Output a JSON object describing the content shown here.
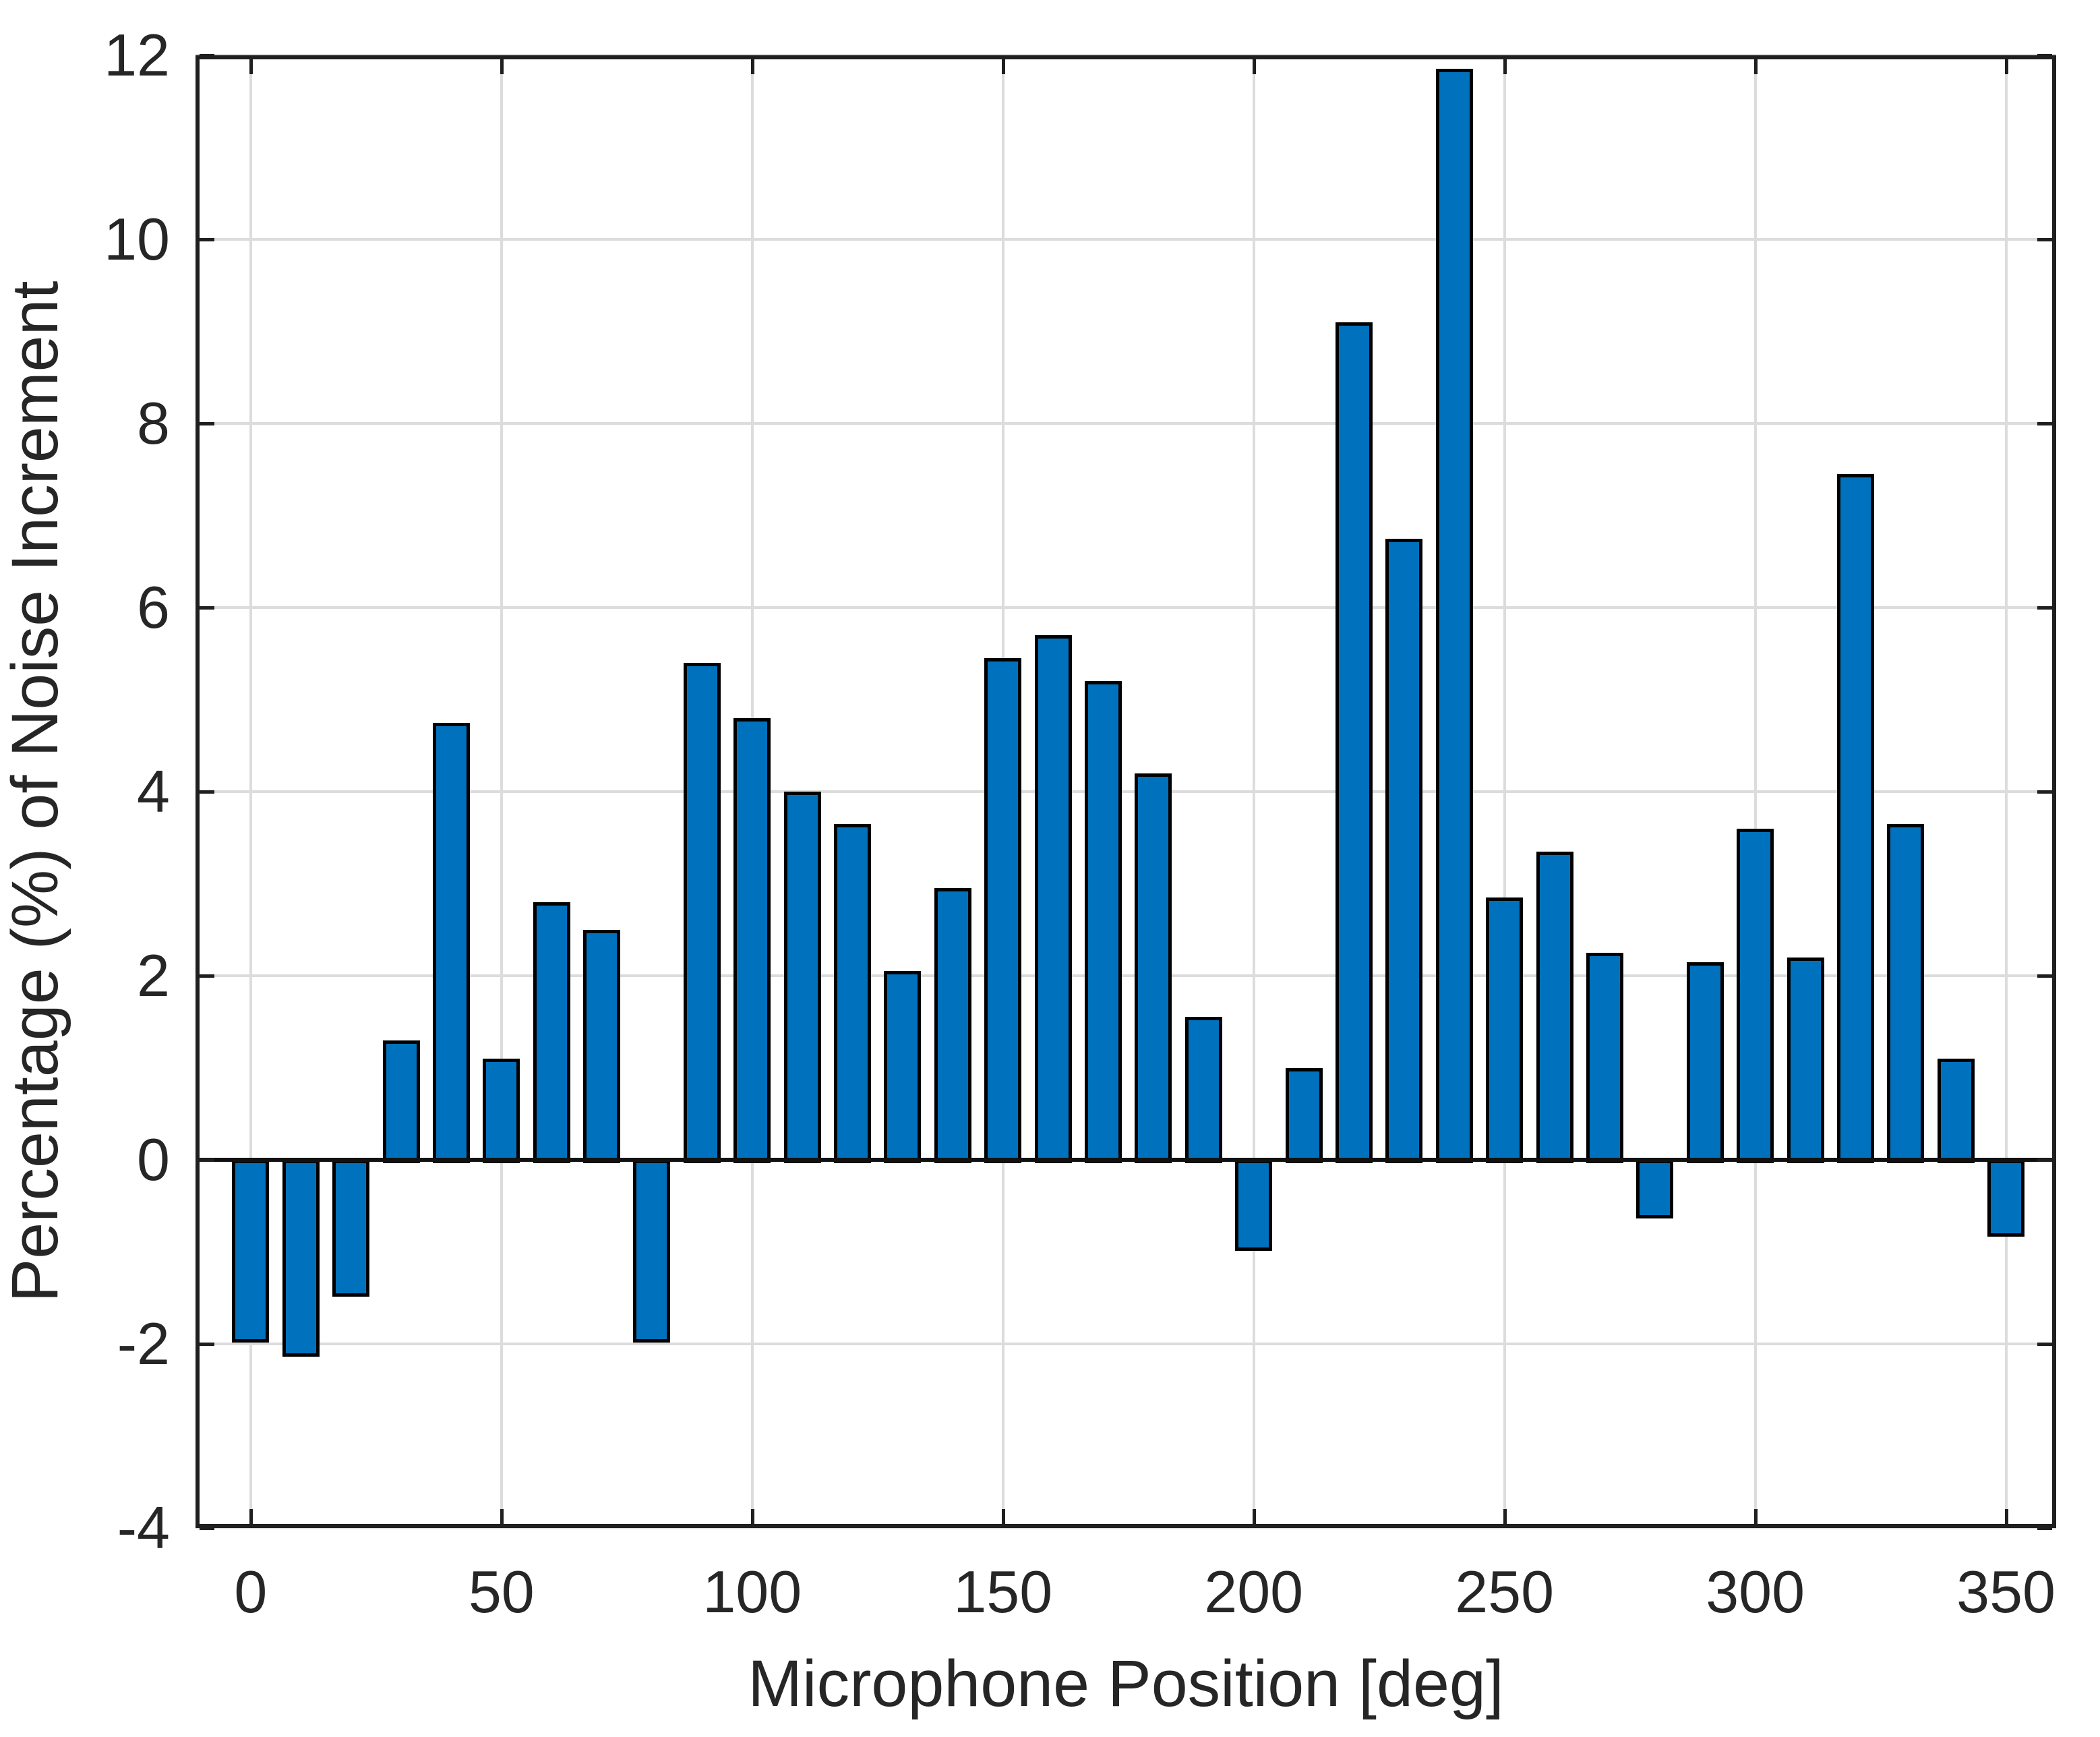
{
  "figure": {
    "background": "#ffffff"
  },
  "chart_data": {
    "type": "bar",
    "title": "",
    "xlabel": "Microphone Position [deg]",
    "ylabel": "Percentage (%) of Noise Increment",
    "x": [
      0,
      10,
      20,
      30,
      40,
      50,
      60,
      70,
      80,
      90,
      100,
      110,
      120,
      130,
      140,
      150,
      160,
      170,
      180,
      190,
      200,
      210,
      220,
      230,
      240,
      250,
      260,
      270,
      280,
      290,
      300,
      310,
      320,
      330,
      340,
      350
    ],
    "values": [
      -1.95,
      -2.1,
      -1.45,
      1.3,
      4.75,
      1.1,
      2.8,
      2.5,
      -1.95,
      5.4,
      4.8,
      4.0,
      3.65,
      2.05,
      2.95,
      5.45,
      5.7,
      5.2,
      4.2,
      1.55,
      -0.95,
      1.0,
      9.1,
      6.75,
      11.85,
      2.85,
      3.35,
      2.25,
      -0.6,
      2.15,
      3.6,
      2.2,
      7.45,
      3.65,
      1.1,
      -0.8
    ],
    "xlim": [
      -11,
      360
    ],
    "ylim": [
      -4,
      12
    ],
    "xticks": [
      0,
      50,
      100,
      150,
      200,
      250,
      300,
      350
    ],
    "yticks": [
      -4,
      -2,
      0,
      2,
      4,
      6,
      8,
      10,
      12
    ],
    "grid": true,
    "legend_position": "none",
    "baseline_value": 0,
    "bar_color": "#0072BD",
    "bar_edge_color": "#000000",
    "grid_color": "#dcdcdc",
    "axis_color": "#1f1f1f",
    "text_color": "#262626"
  }
}
